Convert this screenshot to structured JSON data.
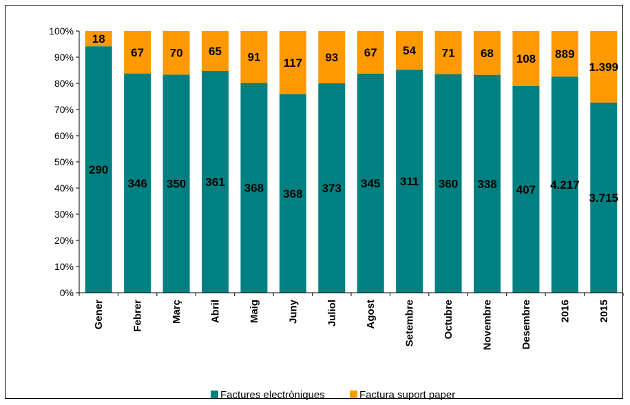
{
  "chart_data": {
    "type": "bar",
    "stacked": "percent",
    "categories": [
      "Gener",
      "Febrer",
      "Març",
      "Abril",
      "Maig",
      "Juny",
      "Juliol",
      "Agost",
      "Setembre",
      "Octubre",
      "Novembre",
      "Desembre",
      "2016",
      "2015"
    ],
    "series": [
      {
        "name": "Factures electròniques",
        "color": "#008080",
        "values": [
          290,
          346,
          350,
          361,
          368,
          368,
          373,
          345,
          311,
          360,
          338,
          407,
          4217,
          3715
        ],
        "labels": [
          "290",
          "346",
          "350",
          "361",
          "368",
          "368",
          "373",
          "345",
          "311",
          "360",
          "338",
          "407",
          "4.217",
          "3.715"
        ]
      },
      {
        "name": "Factura suport paper",
        "color": "#FF9900",
        "values": [
          18,
          67,
          70,
          65,
          91,
          117,
          93,
          67,
          54,
          71,
          68,
          108,
          889,
          1399
        ],
        "labels": [
          "18",
          "67",
          "70",
          "65",
          "91",
          "117",
          "93",
          "67",
          "54",
          "71",
          "68",
          "108",
          "889",
          "1.399"
        ]
      }
    ],
    "yticks": [
      "0%",
      "10%",
      "20%",
      "30%",
      "40%",
      "50%",
      "60%",
      "70%",
      "80%",
      "90%",
      "100%"
    ],
    "ylim": [
      0,
      100
    ],
    "legend": "bottom",
    "grid": false
  }
}
